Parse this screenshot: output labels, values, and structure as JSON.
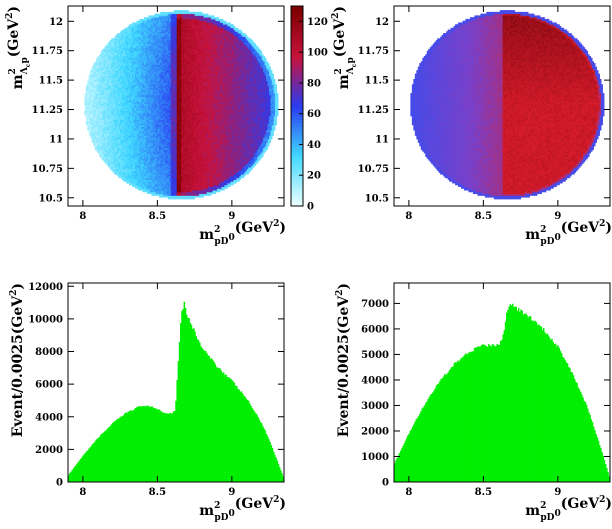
{
  "chart_data": [
    {
      "type": "heatmap",
      "panel": "top-left",
      "x_label": {
        "base": "m",
        "sup": "2",
        "sub": "pD",
        "sub_sup": "0",
        "unit": "(GeV",
        "unit_sup": "2",
        "close": ")"
      },
      "y_label": {
        "base": "m",
        "sup": "2",
        "sub": "Λ",
        "sub_sub": "c",
        "sub2": "p",
        "unit": "(GeV",
        "unit_sup": "2",
        "close": ")"
      },
      "xlim": [
        7.9,
        9.35
      ],
      "ylim": [
        10.43,
        12.13
      ],
      "x_ticks": [
        "8",
        "8.5",
        "9"
      ],
      "x_tick_values": [
        8.0,
        8.5,
        9.0
      ],
      "y_ticks": [
        "10.5",
        "10.75",
        "11",
        "11.25",
        "11.5",
        "11.75",
        "12"
      ],
      "y_tick_values": [
        10.5,
        10.75,
        11.0,
        11.25,
        11.5,
        11.75,
        12.0
      ],
      "colorbar": {
        "min": 0,
        "max": 130,
        "ticks": [
          "0",
          "20",
          "40",
          "60",
          "80",
          "100",
          "120"
        ],
        "tick_values": [
          0,
          20,
          40,
          60,
          80,
          100,
          120
        ]
      },
      "dalitz": {
        "center_x": 8.66,
        "center_y": 11.29,
        "radius_x": 0.65,
        "radius_y": 0.8,
        "split_x": 8.63
      },
      "density": {
        "left_edge": 5,
        "left_mid": 50,
        "split_peak": 120,
        "right_inner": 85,
        "right_edge": 55
      },
      "colors": [
        "#e8ffff",
        "#3fd7ff",
        "#2a3cf0",
        "#c8123c",
        "#7d0000"
      ]
    },
    {
      "type": "heatmap",
      "panel": "top-right",
      "x_label": {
        "base": "m",
        "sup": "2",
        "sub": "pD",
        "sub_sup": "0",
        "unit": "(GeV",
        "unit_sup": "2",
        "close": ")"
      },
      "y_label": {
        "base": "m",
        "sup": "2",
        "sub": "Λ",
        "sub_sub": "c",
        "sub2": "p",
        "unit": "(GeV",
        "unit_sup": "2",
        "close": ")"
      },
      "xlim": [
        7.9,
        9.35
      ],
      "ylim": [
        10.43,
        12.13
      ],
      "x_ticks": [
        "8",
        "8.5",
        "9"
      ],
      "x_tick_values": [
        8.0,
        8.5,
        9.0
      ],
      "y_ticks": [
        "10.5",
        "10.75",
        "11",
        "11.25",
        "11.5",
        "11.75",
        "12"
      ],
      "y_tick_values": [
        10.5,
        10.75,
        11.0,
        11.25,
        11.5,
        11.75,
        12.0
      ],
      "dalitz": {
        "center_x": 8.66,
        "center_y": 11.29,
        "radius_x": 0.65,
        "radius_y": 0.8,
        "split_x": 8.63
      },
      "colors": [
        "#3a4ef0",
        "#7a40c8",
        "#d81c2c",
        "#a00f1a",
        "#4a0000"
      ]
    },
    {
      "type": "bar",
      "panel": "bottom-left",
      "x_label": {
        "base": "m",
        "sup": "2",
        "sub": "pD",
        "sub_sup": "0",
        "unit": "(GeV",
        "unit_sup": "2",
        "close": ")"
      },
      "y_label": {
        "text": "Event/0.0025(GeV",
        "sup": "2",
        "close": ")"
      },
      "xlim": [
        7.9,
        9.35
      ],
      "ylim": [
        0,
        12200
      ],
      "x_ticks": [
        "8",
        "8.5",
        "9"
      ],
      "x_tick_values": [
        8.0,
        8.5,
        9.0
      ],
      "y_ticks": [
        "0",
        "2000",
        "4000",
        "6000",
        "8000",
        "10000",
        "12000"
      ],
      "y_tick_values": [
        0,
        2000,
        4000,
        6000,
        8000,
        10000,
        12000
      ],
      "fill_color": "#00ee00",
      "x": [
        7.9,
        8.0,
        8.1,
        8.2,
        8.3,
        8.4,
        8.5,
        8.55,
        8.6,
        8.62,
        8.64,
        8.66,
        8.68,
        8.7,
        8.8,
        8.9,
        9.0,
        9.1,
        9.2,
        9.25,
        9.3,
        9.35
      ],
      "values": [
        400,
        1600,
        2700,
        3600,
        4300,
        4700,
        4500,
        4200,
        4250,
        4400,
        7500,
        10300,
        11000,
        10200,
        8200,
        7100,
        6200,
        5100,
        3600,
        2600,
        1400,
        200
      ]
    },
    {
      "type": "bar",
      "panel": "bottom-right",
      "x_label": {
        "base": "m",
        "sup": "2",
        "sub": "pD",
        "sub_sup": "0",
        "unit": "(GeV",
        "unit_sup": "2",
        "close": ")"
      },
      "y_label": {
        "text": "Event/0.0025(GeV",
        "sup": "2",
        "close": ")"
      },
      "xlim": [
        7.9,
        9.35
      ],
      "ylim": [
        0,
        7800
      ],
      "x_ticks": [
        "8",
        "8.5",
        "9"
      ],
      "x_tick_values": [
        8.0,
        8.5,
        9.0
      ],
      "y_ticks": [
        "0",
        "1000",
        "2000",
        "3000",
        "4000",
        "5000",
        "6000",
        "7000"
      ],
      "y_tick_values": [
        0,
        1000,
        2000,
        3000,
        4000,
        5000,
        6000,
        7000
      ],
      "fill_color": "#00ee00",
      "x": [
        7.9,
        8.0,
        8.1,
        8.2,
        8.3,
        8.4,
        8.5,
        8.55,
        8.6,
        8.62,
        8.64,
        8.66,
        8.68,
        8.7,
        8.8,
        8.9,
        9.0,
        9.1,
        9.2,
        9.25,
        9.3,
        9.35
      ],
      "values": [
        700,
        1900,
        3000,
        3900,
        4600,
        5100,
        5350,
        5350,
        5400,
        5500,
        6000,
        6700,
        7000,
        6900,
        6500,
        6000,
        5300,
        4200,
        2900,
        2000,
        1100,
        100
      ]
    }
  ]
}
